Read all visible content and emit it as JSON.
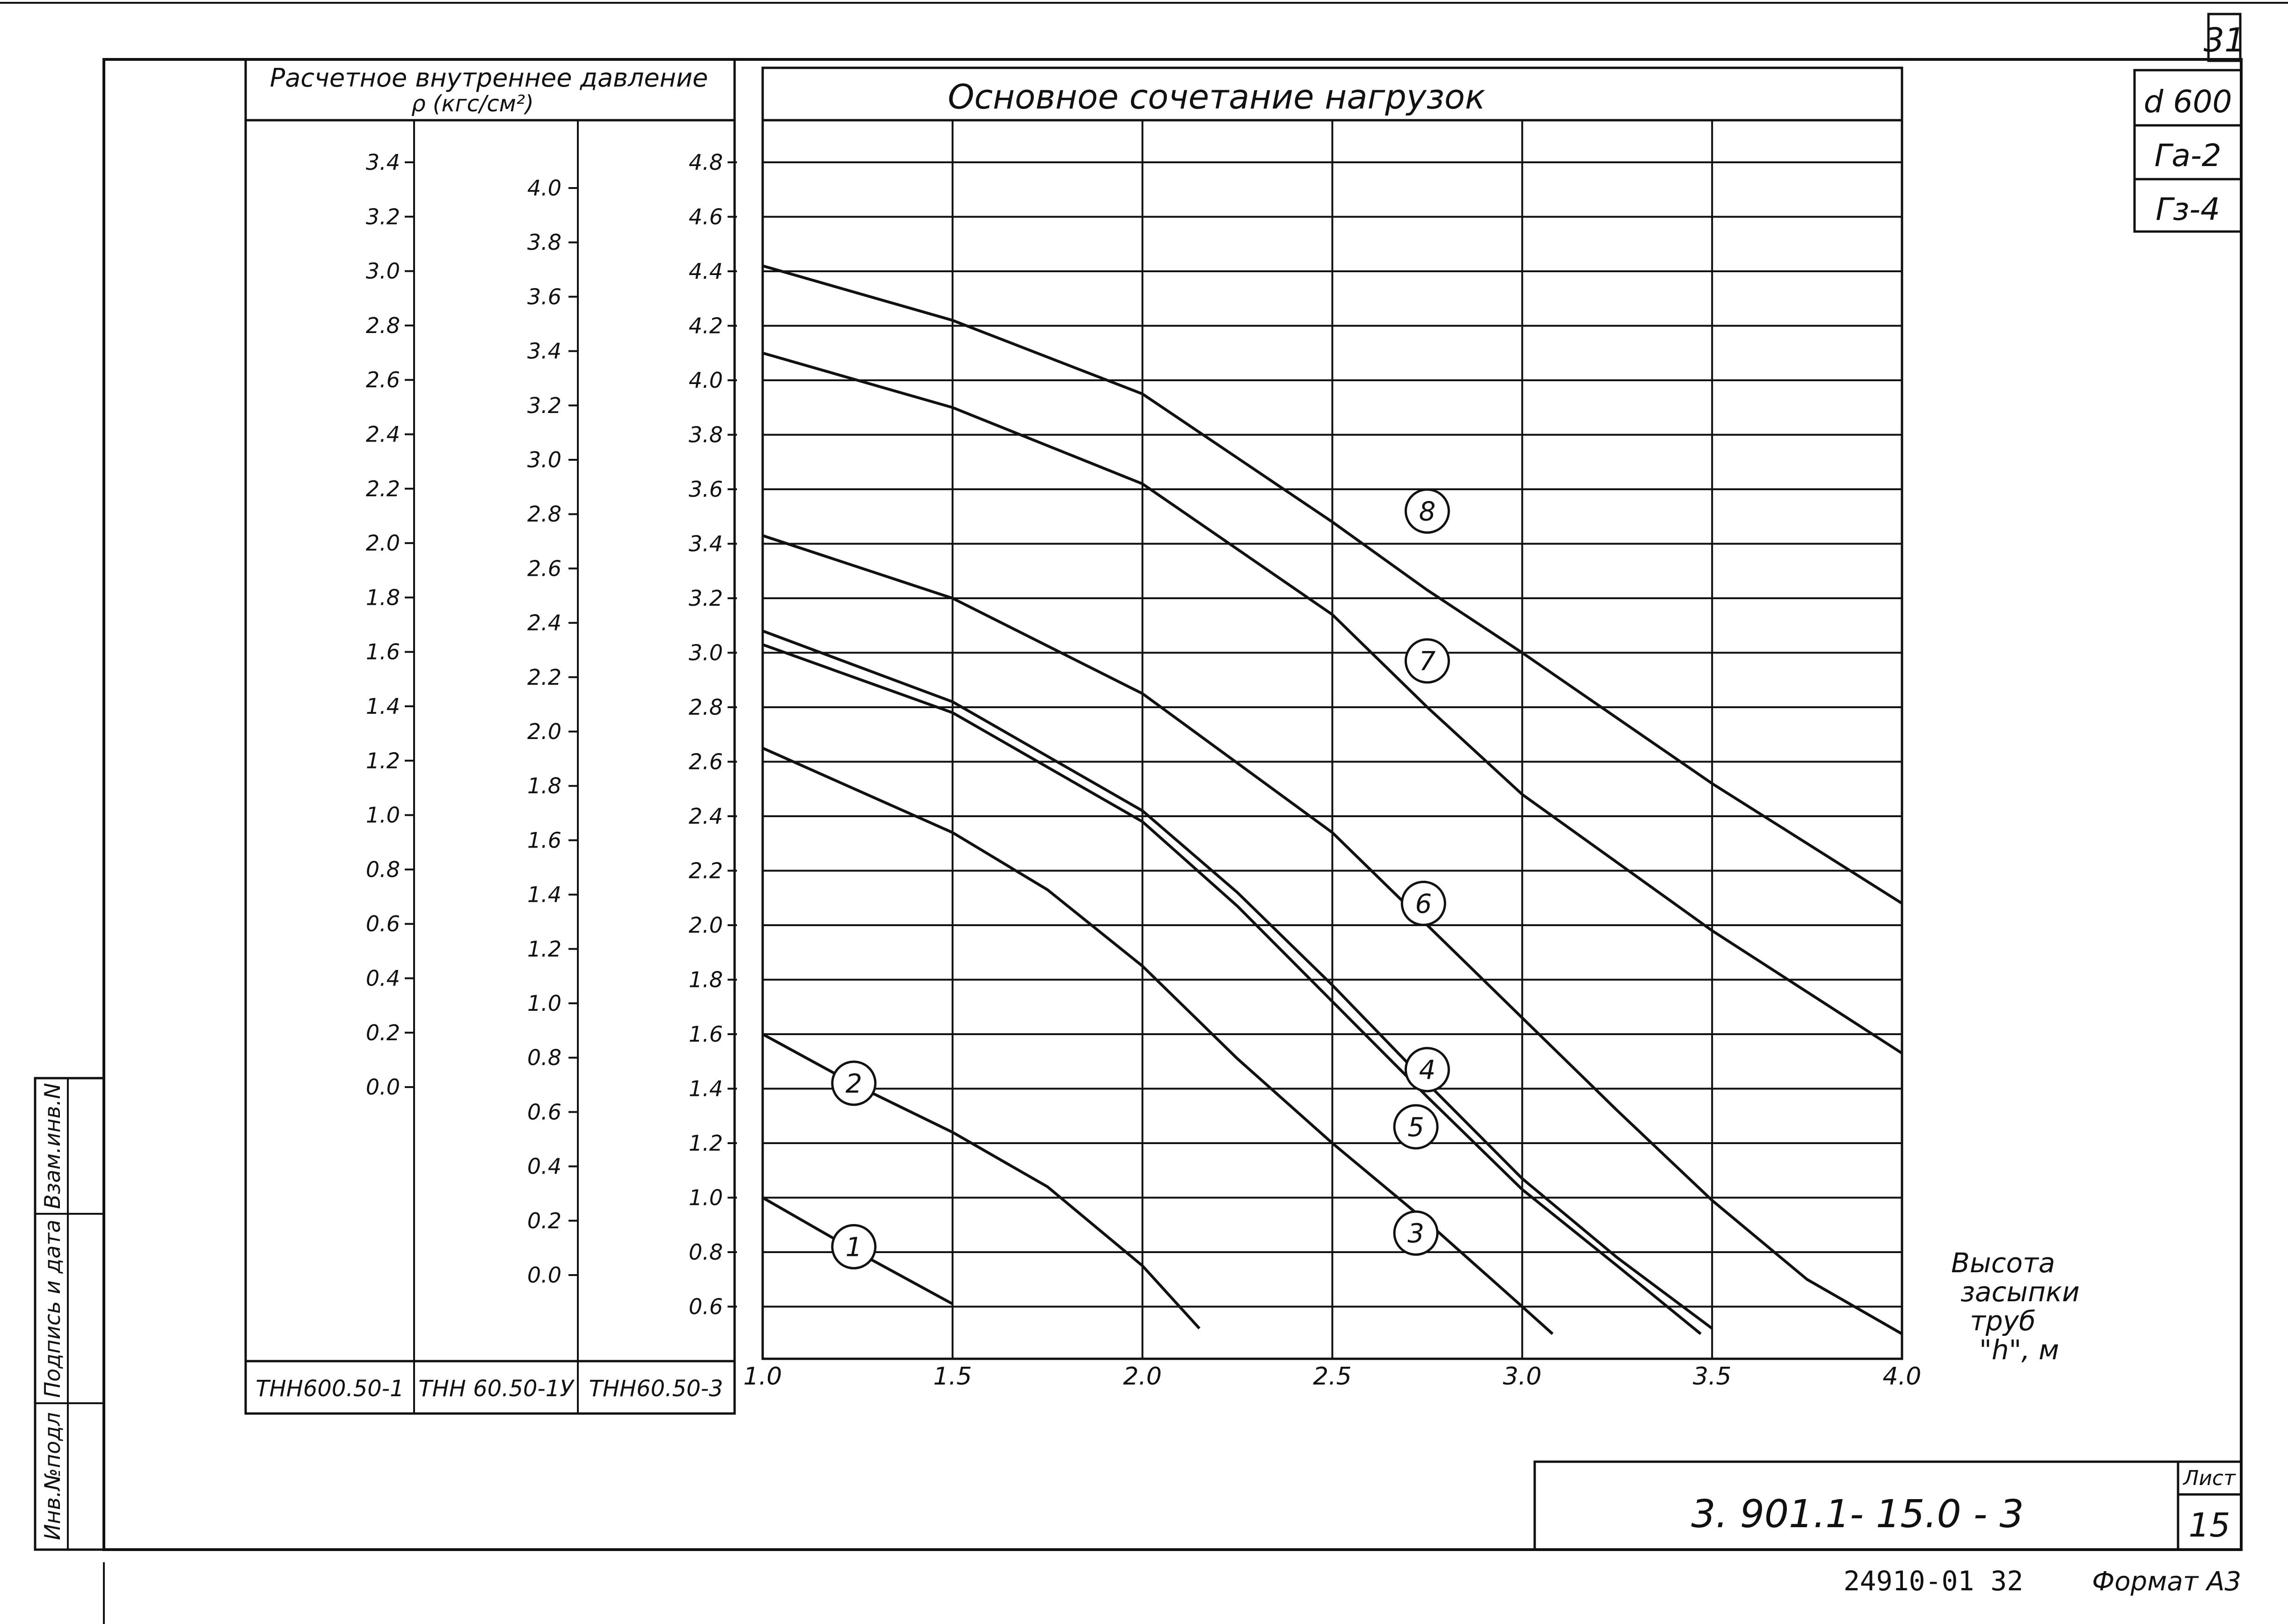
{
  "sheet_number_top": "31",
  "stamp": {
    "diameter": "d 600",
    "ga": "Гa-2",
    "gz": "Гз-4"
  },
  "left_strip": {
    "label_1": "Взам.инв.N",
    "label_2": "Подпись и дата",
    "label_3": "Инв.№подл"
  },
  "pressure_panel": {
    "header_line1": "Расчетное внутреннее давление",
    "header_line2": "ρ (кгс/см²)",
    "columns": [
      {
        "label": "ТНН600.50-1",
        "ticks": [
          "3.4",
          "3.2",
          "3.0",
          "2.8",
          "2.6",
          "2.4",
          "2.2",
          "2.0",
          "1.8",
          "1.6",
          "1.4",
          "1.2",
          "1.0",
          "0.8",
          "0.6",
          "0.4",
          "0.2",
          "0.0"
        ]
      },
      {
        "label": "ТНН 60.50-1У",
        "ticks": [
          "4.0",
          "3.8",
          "3.6",
          "3.4",
          "3.2",
          "3.0",
          "2.8",
          "2.6",
          "2.4",
          "2.2",
          "2.0",
          "1.8",
          "1.6",
          "1.4",
          "1.2",
          "1.0",
          "0.8",
          "0.6",
          "0.4",
          "0.2",
          "0.0"
        ]
      },
      {
        "label": "ТНН60.50-3",
        "ticks": [
          "4.8",
          "4.6",
          "4.4",
          "4.2",
          "4.0",
          "3.8",
          "3.6",
          "3.4",
          "3.2",
          "3.0",
          "2.8",
          "2.6",
          "2.4",
          "2.2",
          "2.0",
          "1.8",
          "1.6",
          "1.4",
          "1.2",
          "1.0",
          "0.8",
          "0.6"
        ]
      }
    ]
  },
  "chart_data": {
    "type": "line",
    "title": "Основное сочетание нагрузок",
    "xlabel": "Высота засыпки труб \"h\", м",
    "ylabel": "ρ (кгс/см²)",
    "x_ticks": [
      "1.0",
      "1.5",
      "2.0",
      "2.5",
      "3.0",
      "3.5",
      "4.0"
    ],
    "xlim": [
      1.0,
      4.0
    ],
    "ylim": [
      0.5,
      4.9
    ],
    "grid": true,
    "series": [
      {
        "name": "1",
        "points": [
          [
            1.0,
            1.0
          ],
          [
            1.25,
            0.8
          ],
          [
            1.5,
            0.61
          ]
        ]
      },
      {
        "name": "2",
        "points": [
          [
            1.0,
            1.6
          ],
          [
            1.25,
            1.41
          ],
          [
            1.5,
            1.24
          ],
          [
            1.75,
            1.04
          ],
          [
            2.0,
            0.75
          ],
          [
            2.15,
            0.52
          ]
        ]
      },
      {
        "name": "3",
        "points": [
          [
            1.0,
            2.65
          ],
          [
            1.5,
            2.34
          ],
          [
            1.75,
            2.13
          ],
          [
            2.0,
            1.85
          ],
          [
            2.25,
            1.51
          ],
          [
            2.5,
            1.2
          ],
          [
            2.75,
            0.91
          ],
          [
            3.0,
            0.6
          ],
          [
            3.08,
            0.5
          ]
        ]
      },
      {
        "name": "4",
        "points": [
          [
            1.0,
            3.08
          ],
          [
            1.5,
            2.82
          ],
          [
            2.0,
            2.42
          ],
          [
            2.25,
            2.12
          ],
          [
            2.5,
            1.78
          ],
          [
            2.75,
            1.42
          ],
          [
            3.0,
            1.07
          ],
          [
            3.25,
            0.78
          ],
          [
            3.5,
            0.52
          ]
        ]
      },
      {
        "name": "5",
        "points": [
          [
            1.0,
            3.03
          ],
          [
            1.5,
            2.78
          ],
          [
            2.0,
            2.38
          ],
          [
            2.25,
            2.07
          ],
          [
            2.5,
            1.72
          ],
          [
            2.75,
            1.37
          ],
          [
            3.0,
            1.03
          ],
          [
            3.25,
            0.75
          ],
          [
            3.47,
            0.5
          ]
        ]
      },
      {
        "name": "6",
        "points": [
          [
            1.0,
            3.43
          ],
          [
            1.5,
            3.2
          ],
          [
            2.0,
            2.85
          ],
          [
            2.5,
            2.34
          ],
          [
            2.75,
            2.0
          ],
          [
            3.0,
            1.66
          ],
          [
            3.25,
            1.32
          ],
          [
            3.5,
            0.99
          ],
          [
            3.75,
            0.7
          ],
          [
            4.0,
            0.5
          ]
        ]
      },
      {
        "name": "7",
        "points": [
          [
            1.0,
            4.1
          ],
          [
            1.5,
            3.9
          ],
          [
            2.0,
            3.62
          ],
          [
            2.5,
            3.14
          ],
          [
            2.75,
            2.8
          ],
          [
            3.0,
            2.48
          ],
          [
            3.5,
            1.98
          ],
          [
            4.0,
            1.53
          ]
        ]
      },
      {
        "name": "8",
        "points": [
          [
            1.0,
            4.42
          ],
          [
            1.5,
            4.22
          ],
          [
            2.0,
            3.95
          ],
          [
            2.5,
            3.48
          ],
          [
            2.75,
            3.23
          ],
          [
            3.0,
            3.0
          ],
          [
            3.5,
            2.52
          ],
          [
            4.0,
            2.08
          ]
        ]
      }
    ]
  },
  "title_block": {
    "code": "3. 901.1- 15.0 - 3",
    "sheet_label": "Лист",
    "sheet_number": "15",
    "inventory": "24910-01  32",
    "format": "Формат А3"
  }
}
